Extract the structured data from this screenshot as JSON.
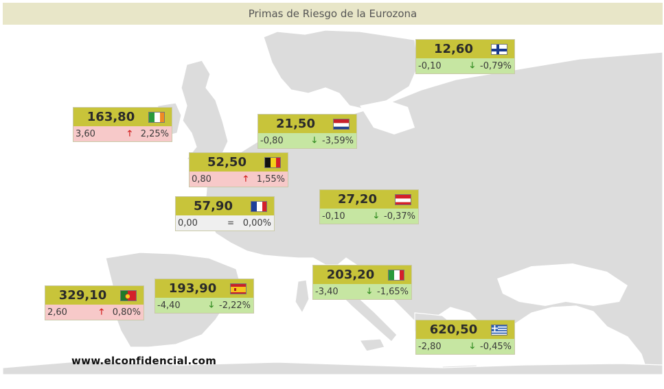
{
  "header": {
    "title": "Primas de Riesgo de la Eurozona"
  },
  "source": "www.elconfidencial.com",
  "colors": {
    "header_bg": "#e8e6c8",
    "value_bg": "#c8c43a",
    "decrease_bg": "#c6e6a2",
    "increase_bg": "#f7c9c9",
    "unchanged_bg": "#efefef",
    "land": "#dcdcdc",
    "sea": "#ffffff"
  },
  "countries": {
    "finland": {
      "value": "12,60",
      "change": "-0,10",
      "direction": "down",
      "arrow": "🡓",
      "pct": "-0,79%",
      "flag": "finland-flag-icon"
    },
    "ireland": {
      "value": "163,80",
      "change": "3,60",
      "direction": "up",
      "arrow": "🡑",
      "pct": "2,25%",
      "flag": "ireland-flag-icon"
    },
    "netherlands": {
      "value": "21,50",
      "change": "-0,80",
      "direction": "down",
      "arrow": "🡓",
      "pct": "-3,59%",
      "flag": "netherlands-flag-icon"
    },
    "belgium": {
      "value": "52,50",
      "change": "0,80",
      "direction": "up",
      "arrow": "🡑",
      "pct": "1,55%",
      "flag": "belgium-flag-icon"
    },
    "france": {
      "value": "57,90",
      "change": "0,00",
      "direction": "flat",
      "arrow": "=",
      "pct": "0,00%",
      "flag": "france-flag-icon"
    },
    "austria": {
      "value": "27,20",
      "change": "-0,10",
      "direction": "down",
      "arrow": "🡓",
      "pct": "-0,37%",
      "flag": "austria-flag-icon"
    },
    "portugal": {
      "value": "329,10",
      "change": "2,60",
      "direction": "up",
      "arrow": "🡑",
      "pct": "0,80%",
      "flag": "portugal-flag-icon"
    },
    "spain": {
      "value": "193,90",
      "change": "-4,40",
      "direction": "down",
      "arrow": "🡓",
      "pct": "-2,22%",
      "flag": "spain-flag-icon"
    },
    "italy": {
      "value": "203,20",
      "change": "-3,40",
      "direction": "down",
      "arrow": "🡓",
      "pct": "-1,65%",
      "flag": "italy-flag-icon"
    },
    "greece": {
      "value": "620,50",
      "change": "-2,80",
      "direction": "down",
      "arrow": "🡓",
      "pct": "-0,45%",
      "flag": "greece-flag-icon"
    }
  }
}
